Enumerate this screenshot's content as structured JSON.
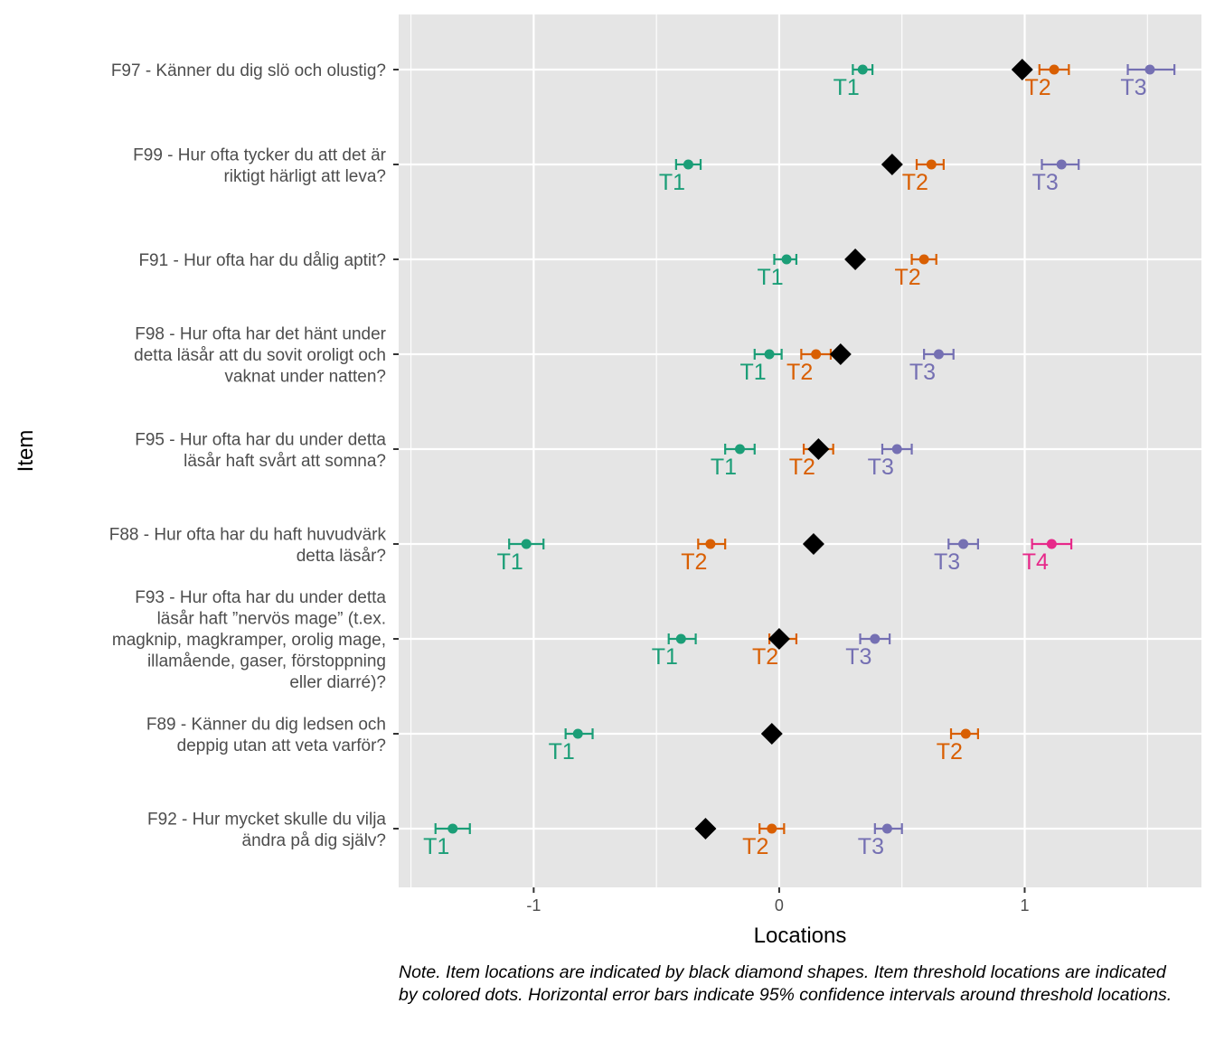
{
  "chart_data": {
    "type": "scatter",
    "xlabel": "Locations",
    "ylabel": "Item",
    "xlim": [
      -1.55,
      1.72
    ],
    "x_ticks": [
      -1,
      0,
      1
    ],
    "x_tick_labels": [
      "-1",
      "0",
      "1"
    ],
    "grid": true,
    "threshold_colors": {
      "T1": "#1b9e77",
      "T2": "#d95f02",
      "T3": "#7570b3",
      "T4": "#e7298a"
    },
    "item_marker_color": "#000000",
    "items": [
      {
        "label": "F97 - Känner du dig slö och olustig?",
        "location": 0.99,
        "thresholds": [
          {
            "name": "T1",
            "value": 0.34,
            "ci_low": 0.3,
            "ci_high": 0.38
          },
          {
            "name": "T2",
            "value": 1.12,
            "ci_low": 1.06,
            "ci_high": 1.18
          },
          {
            "name": "T3",
            "value": 1.51,
            "ci_low": 1.42,
            "ci_high": 1.61
          }
        ]
      },
      {
        "label": "F99 - Hur ofta tycker du att det är\nriktigt härligt att leva?",
        "location": 0.46,
        "thresholds": [
          {
            "name": "T1",
            "value": -0.37,
            "ci_low": -0.42,
            "ci_high": -0.32
          },
          {
            "name": "T2",
            "value": 0.62,
            "ci_low": 0.56,
            "ci_high": 0.67
          },
          {
            "name": "T3",
            "value": 1.15,
            "ci_low": 1.07,
            "ci_high": 1.22
          }
        ]
      },
      {
        "label": "F91 - Hur ofta har du dålig aptit?",
        "location": 0.31,
        "thresholds": [
          {
            "name": "T1",
            "value": 0.03,
            "ci_low": -0.02,
            "ci_high": 0.07
          },
          {
            "name": "T2",
            "value": 0.59,
            "ci_low": 0.54,
            "ci_high": 0.64
          }
        ]
      },
      {
        "label": "F98 - Hur ofta har det hänt under\ndetta läsår att du sovit oroligt och\nvaknat under natten?",
        "location": 0.25,
        "thresholds": [
          {
            "name": "T1",
            "value": -0.04,
            "ci_low": -0.1,
            "ci_high": 0.01
          },
          {
            "name": "T2",
            "value": 0.15,
            "ci_low": 0.09,
            "ci_high": 0.21
          },
          {
            "name": "T3",
            "value": 0.65,
            "ci_low": 0.59,
            "ci_high": 0.71
          }
        ]
      },
      {
        "label": "F95 - Hur ofta har du under detta\nläsår haft svårt att somna?",
        "location": 0.16,
        "thresholds": [
          {
            "name": "T1",
            "value": -0.16,
            "ci_low": -0.22,
            "ci_high": -0.1
          },
          {
            "name": "T2",
            "value": 0.16,
            "ci_low": 0.1,
            "ci_high": 0.22
          },
          {
            "name": "T3",
            "value": 0.48,
            "ci_low": 0.42,
            "ci_high": 0.54
          }
        ]
      },
      {
        "label": "F88 - Hur ofta har du haft huvudvärk\ndetta läsår?",
        "location": 0.14,
        "thresholds": [
          {
            "name": "T1",
            "value": -1.03,
            "ci_low": -1.1,
            "ci_high": -0.96
          },
          {
            "name": "T2",
            "value": -0.28,
            "ci_low": -0.33,
            "ci_high": -0.22
          },
          {
            "name": "T3",
            "value": 0.75,
            "ci_low": 0.69,
            "ci_high": 0.81
          },
          {
            "name": "T4",
            "value": 1.11,
            "ci_low": 1.03,
            "ci_high": 1.19
          }
        ]
      },
      {
        "label": "F93 - Hur ofta har du under detta\nläsår haft ”nervös mage” (t.ex.\nmagknip, magkramper, orolig mage,\nillamående, gaser, förstoppning\neller diarré)?",
        "location": 0.0,
        "thresholds": [
          {
            "name": "T1",
            "value": -0.4,
            "ci_low": -0.45,
            "ci_high": -0.34
          },
          {
            "name": "T2",
            "value": 0.01,
            "ci_low": -0.04,
            "ci_high": 0.07
          },
          {
            "name": "T3",
            "value": 0.39,
            "ci_low": 0.33,
            "ci_high": 0.45
          }
        ]
      },
      {
        "label": "F89 - Känner du dig ledsen och\ndeppig utan att veta varför?",
        "location": -0.03,
        "thresholds": [
          {
            "name": "T1",
            "value": -0.82,
            "ci_low": -0.87,
            "ci_high": -0.76
          },
          {
            "name": "T2",
            "value": 0.76,
            "ci_low": 0.7,
            "ci_high": 0.81
          }
        ]
      },
      {
        "label": "F92 - Hur mycket skulle du vilja\nändra på dig själv?",
        "location": -0.3,
        "thresholds": [
          {
            "name": "T1",
            "value": -1.33,
            "ci_low": -1.4,
            "ci_high": -1.26
          },
          {
            "name": "T2",
            "value": -0.03,
            "ci_low": -0.08,
            "ci_high": 0.02
          },
          {
            "name": "T3",
            "value": 0.44,
            "ci_low": 0.39,
            "ci_high": 0.5
          }
        ]
      }
    ]
  },
  "note": "Note. Item locations are indicated by black diamond shapes. Item threshold locations are indicated by colored dots. Horizontal error bars indicate 95% confidence intervals around threshold locations."
}
